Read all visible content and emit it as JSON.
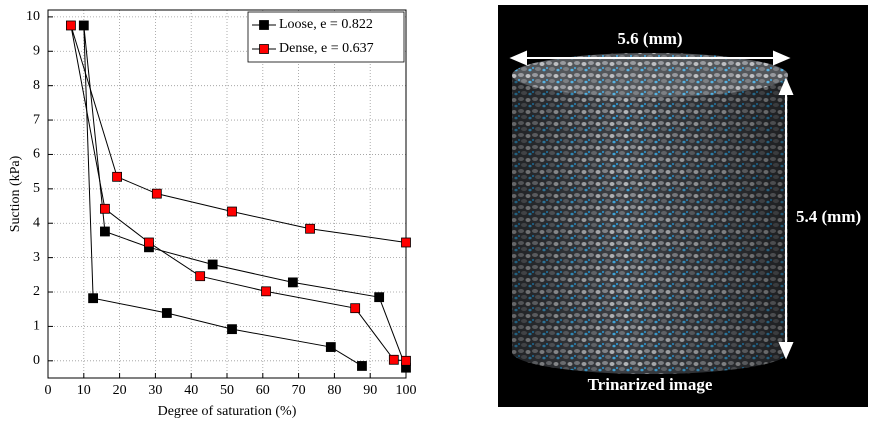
{
  "chart_data": {
    "type": "line",
    "x_label": "Degree of saturation (%)",
    "y_label": "Suction (kPa)",
    "xlim": [
      0,
      100
    ],
    "ylim": [
      -0.5,
      10.2
    ],
    "xticks": [
      0,
      10,
      20,
      30,
      40,
      50,
      60,
      70,
      80,
      90,
      100
    ],
    "yticks": [
      0,
      1,
      2,
      3,
      4,
      5,
      6,
      7,
      8,
      9,
      10
    ],
    "grid": true,
    "legend": "upper right",
    "series": [
      {
        "name": "Loose, e = 0.822",
        "color": "#000000",
        "x": [
          87.7,
          79,
          51.4,
          33.2,
          12.6,
          10,
          15.9,
          28.2,
          46,
          68.4,
          92.5,
          100
        ],
        "values": [
          -0.15,
          0.4,
          0.92,
          1.39,
          1.82,
          9.75,
          3.76,
          3.3,
          2.8,
          2.28,
          1.85,
          -0.2
        ]
      },
      {
        "name": "Dense, e = 0.637",
        "color": "#ff0000",
        "x": [
          100,
          96.6,
          85.8,
          60.9,
          42.5,
          28.2,
          15.9,
          6.4,
          19.3,
          30.4,
          51.4,
          73.2,
          100
        ],
        "values": [
          0,
          0.03,
          1.53,
          2.02,
          2.46,
          3.44,
          4.42,
          9.75,
          5.35,
          4.86,
          4.34,
          3.84,
          3.44
        ]
      }
    ]
  },
  "image": {
    "width_label": "5.6 (mm)",
    "height_label": "5.4 (mm)",
    "caption": "Trinarized image"
  }
}
